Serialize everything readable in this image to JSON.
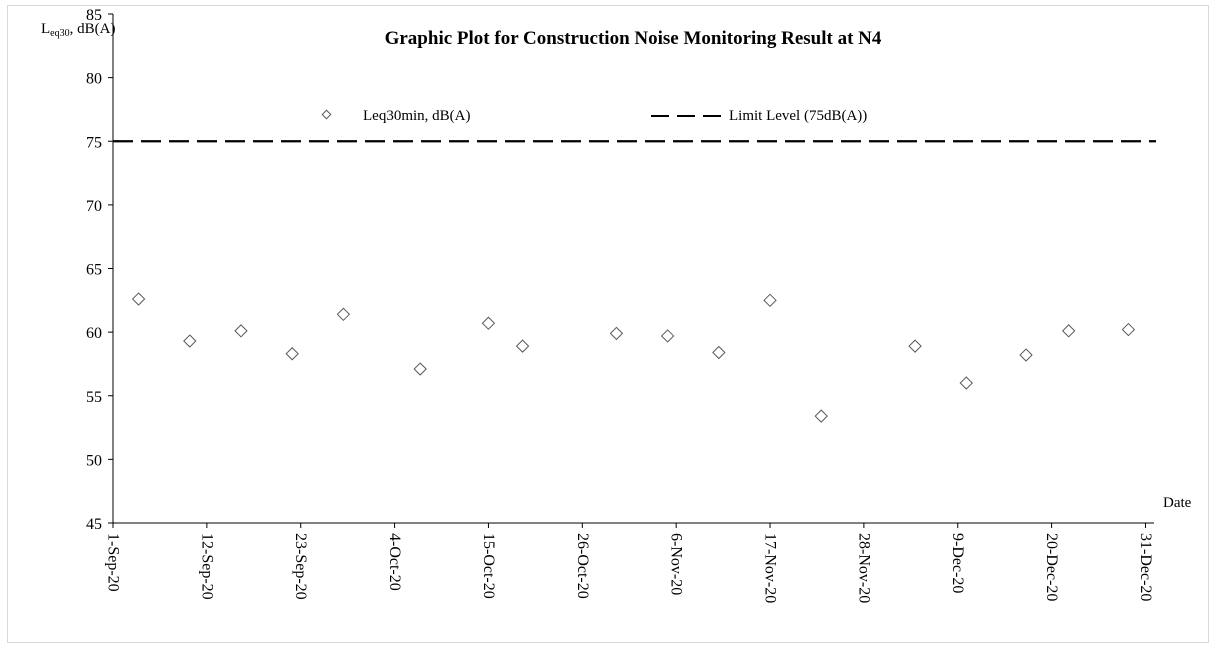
{
  "chart_data": {
    "type": "scatter",
    "title": "Graphic Plot for Construction Noise Monitoring Result at N4",
    "ylabel_main": "L",
    "ylabel_sub": "eq30",
    "ylabel_rest": ", dB(A)",
    "xlabel": "Date",
    "ylim": [
      45,
      85
    ],
    "yticks": [
      45,
      50,
      55,
      60,
      65,
      70,
      75,
      80,
      85
    ],
    "xlim": [
      "2020-09-01",
      "2021-01-01"
    ],
    "xtick_labels": [
      "1-Sep-20",
      "12-Sep-20",
      "23-Sep-20",
      "4-Oct-20",
      "15-Oct-20",
      "26-Oct-20",
      "6-Nov-20",
      "17-Nov-20",
      "28-Nov-20",
      "9-Dec-20",
      "20-Dec-20",
      "31-Dec-20"
    ],
    "xtick_dates": [
      "2020-09-01",
      "2020-09-12",
      "2020-09-23",
      "2020-10-04",
      "2020-10-15",
      "2020-10-26",
      "2020-11-06",
      "2020-11-17",
      "2020-11-28",
      "2020-12-09",
      "2020-12-20",
      "2020-12-31"
    ],
    "series": [
      {
        "name": "Leq30min, dB(A)",
        "marker": "diamond",
        "color": "#595959",
        "points": [
          {
            "x": "2020-09-04",
            "y": 62.6
          },
          {
            "x": "2020-09-10",
            "y": 59.3
          },
          {
            "x": "2020-09-16",
            "y": 60.1
          },
          {
            "x": "2020-09-22",
            "y": 58.3
          },
          {
            "x": "2020-09-28",
            "y": 61.4
          },
          {
            "x": "2020-10-07",
            "y": 57.1
          },
          {
            "x": "2020-10-15",
            "y": 60.7
          },
          {
            "x": "2020-10-19",
            "y": 58.9
          },
          {
            "x": "2020-10-30",
            "y": 59.9
          },
          {
            "x": "2020-11-05",
            "y": 59.7
          },
          {
            "x": "2020-11-11",
            "y": 58.4
          },
          {
            "x": "2020-11-17",
            "y": 62.5
          },
          {
            "x": "2020-11-23",
            "y": 53.4
          },
          {
            "x": "2020-12-04",
            "y": 58.9
          },
          {
            "x": "2020-12-10",
            "y": 56.0
          },
          {
            "x": "2020-12-17",
            "y": 58.2
          },
          {
            "x": "2020-12-22",
            "y": 60.1
          },
          {
            "x": "2020-12-29",
            "y": 60.2
          }
        ]
      },
      {
        "name": "Limit Level (75dB(A))",
        "type": "line",
        "style": "dashed",
        "color": "#000000",
        "y": 75
      }
    ],
    "legend_placement": "top-center",
    "grid": false
  }
}
